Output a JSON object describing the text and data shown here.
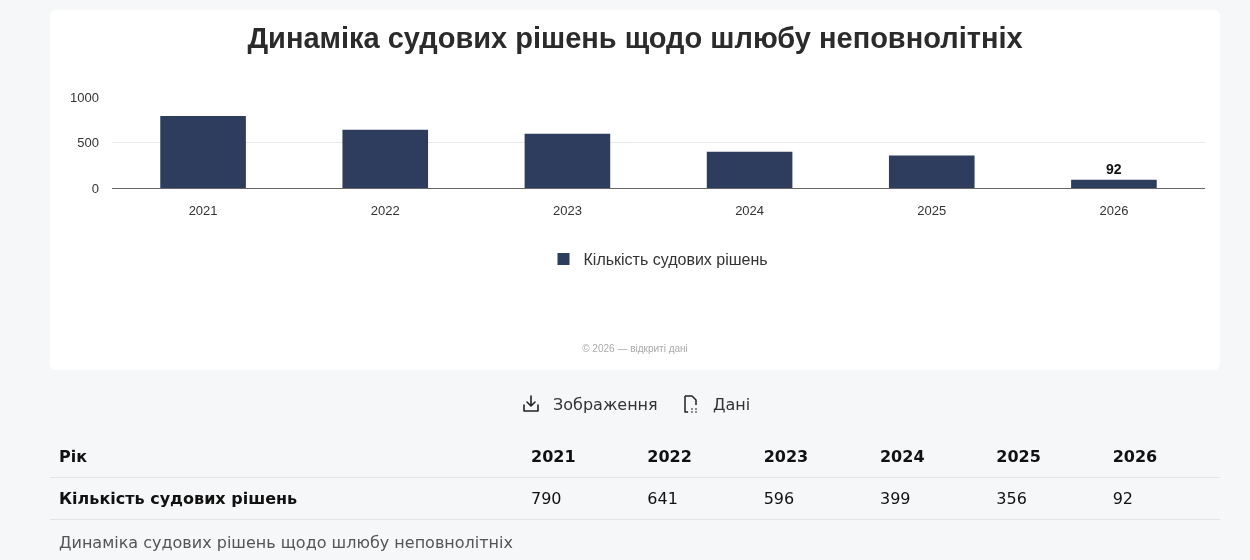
{
  "chart_data": {
    "type": "bar",
    "title": "Динаміка судових рішень щодо шлюбу неповнолітніх",
    "categories": [
      "2021",
      "2022",
      "2023",
      "2024",
      "2025",
      "2026"
    ],
    "series": [
      {
        "name": "Кількість судових рішень",
        "color": "#2e3d5e",
        "values": [
          790,
          641,
          596,
          399,
          356,
          92
        ],
        "value_labels": [
          null,
          null,
          null,
          null,
          null,
          "92"
        ]
      }
    ],
    "ylim": [
      0,
      1000
    ],
    "yticks": [
      0,
      500,
      1000
    ],
    "grid": "y",
    "legend": "bottom",
    "annotations": [
      "© 2026 — відкриті дані",
      "Зображення",
      "Дані",
      "Рік",
      "790",
      "641",
      "596",
      "399",
      "356",
      "92",
      "Динаміка судових рішень щодо шлюбу неповнолітніх"
    ]
  }
}
